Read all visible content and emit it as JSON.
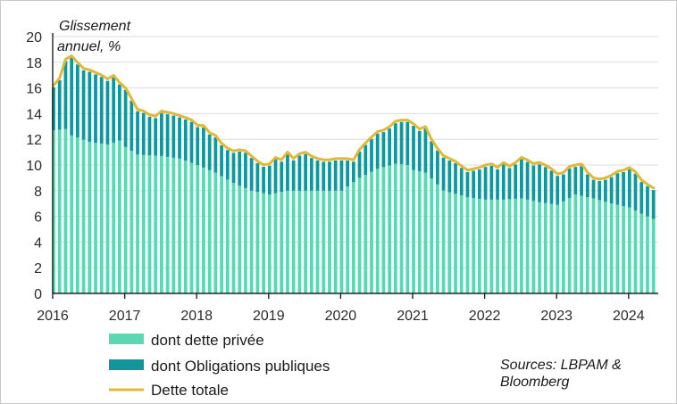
{
  "chart_data": {
    "type": "bar",
    "ylabel_line1": "Glissement",
    "ylabel_line2": "annuel, %",
    "ylim": [
      0,
      20
    ],
    "yticks": [
      "0",
      "2",
      "4",
      "6",
      "8",
      "10",
      "12",
      "14",
      "16",
      "18",
      "20"
    ],
    "xlim": [
      2016,
      2024.33
    ],
    "xticks": [
      "2016",
      "2017",
      "2018",
      "2019",
      "2020",
      "2021",
      "2022",
      "2023",
      "2024"
    ],
    "grid": "horizontal",
    "legend_position": "bottom-left",
    "legend": [
      {
        "key": "private",
        "label": "dont dette privée",
        "color": "#5dd6b4"
      },
      {
        "key": "public",
        "label": "dont Obligations publiques",
        "color": "#12959b"
      },
      {
        "key": "total",
        "label": "Dette totale",
        "color": "#e0b83a"
      }
    ],
    "source_line1": "Sources: LBPAM &",
    "source_line2": "Bloomberg",
    "anchors": {
      "total": [
        [
          2016.0,
          16.2
        ],
        [
          2016.08,
          16.7
        ],
        [
          2016.17,
          18.3
        ],
        [
          2016.25,
          18.5
        ],
        [
          2016.33,
          18.0
        ],
        [
          2016.42,
          17.5
        ],
        [
          2016.5,
          17.4
        ],
        [
          2016.67,
          17.0
        ],
        [
          2016.75,
          16.7
        ],
        [
          2016.83,
          17.0
        ],
        [
          2016.92,
          16.4
        ],
        [
          2017.0,
          16.0
        ],
        [
          2017.08,
          15.2
        ],
        [
          2017.17,
          14.3
        ],
        [
          2017.25,
          14.2
        ],
        [
          2017.33,
          13.9
        ],
        [
          2017.42,
          13.8
        ],
        [
          2017.5,
          14.2
        ],
        [
          2017.67,
          14.0
        ],
        [
          2017.83,
          13.7
        ],
        [
          2017.92,
          13.5
        ],
        [
          2018.0,
          13.1
        ],
        [
          2018.08,
          13.1
        ],
        [
          2018.17,
          12.5
        ],
        [
          2018.25,
          12.3
        ],
        [
          2018.33,
          11.7
        ],
        [
          2018.42,
          11.3
        ],
        [
          2018.5,
          11.1
        ],
        [
          2018.58,
          11.2
        ],
        [
          2018.67,
          11.1
        ],
        [
          2018.75,
          10.7
        ],
        [
          2018.83,
          10.3
        ],
        [
          2018.92,
          10.0
        ],
        [
          2019.0,
          10.1
        ],
        [
          2019.08,
          10.6
        ],
        [
          2019.17,
          10.4
        ],
        [
          2019.25,
          11.0
        ],
        [
          2019.33,
          10.5
        ],
        [
          2019.42,
          10.9
        ],
        [
          2019.5,
          11.0
        ],
        [
          2019.58,
          10.7
        ],
        [
          2019.67,
          10.5
        ],
        [
          2019.75,
          10.4
        ],
        [
          2019.83,
          10.4
        ],
        [
          2019.92,
          10.5
        ],
        [
          2020.0,
          10.5
        ],
        [
          2020.08,
          10.5
        ],
        [
          2020.17,
          10.4
        ],
        [
          2020.25,
          11.2
        ],
        [
          2020.33,
          11.7
        ],
        [
          2020.42,
          12.2
        ],
        [
          2020.5,
          12.6
        ],
        [
          2020.58,
          12.7
        ],
        [
          2020.67,
          13.0
        ],
        [
          2020.75,
          13.4
        ],
        [
          2020.83,
          13.5
        ],
        [
          2020.92,
          13.5
        ],
        [
          2021.0,
          13.2
        ],
        [
          2021.08,
          12.8
        ],
        [
          2021.17,
          13.0
        ],
        [
          2021.25,
          12.0
        ],
        [
          2021.33,
          11.3
        ],
        [
          2021.42,
          10.7
        ],
        [
          2021.5,
          10.5
        ],
        [
          2021.58,
          10.3
        ],
        [
          2021.67,
          9.9
        ],
        [
          2021.75,
          9.6
        ],
        [
          2021.83,
          9.7
        ],
        [
          2021.92,
          9.8
        ],
        [
          2022.0,
          10.0
        ],
        [
          2022.08,
          10.1
        ],
        [
          2022.17,
          9.8
        ],
        [
          2022.25,
          10.2
        ],
        [
          2022.33,
          9.9
        ],
        [
          2022.42,
          10.2
        ],
        [
          2022.5,
          10.6
        ],
        [
          2022.58,
          10.4
        ],
        [
          2022.67,
          10.1
        ],
        [
          2022.75,
          10.2
        ],
        [
          2022.83,
          10.0
        ],
        [
          2022.92,
          9.7
        ],
        [
          2023.0,
          9.3
        ],
        [
          2023.08,
          9.4
        ],
        [
          2023.17,
          9.9
        ],
        [
          2023.25,
          10.0
        ],
        [
          2023.33,
          10.1
        ],
        [
          2023.42,
          9.4
        ],
        [
          2023.5,
          9.0
        ],
        [
          2023.58,
          8.9
        ],
        [
          2023.67,
          9.0
        ],
        [
          2023.75,
          9.2
        ],
        [
          2023.83,
          9.5
        ],
        [
          2023.92,
          9.6
        ],
        [
          2024.0,
          9.8
        ],
        [
          2024.08,
          9.5
        ],
        [
          2024.17,
          8.8
        ],
        [
          2024.25,
          8.5
        ],
        [
          2024.33,
          8.2
        ]
      ],
      "private": [
        [
          2016.0,
          12.7
        ],
        [
          2016.17,
          12.8
        ],
        [
          2016.25,
          12.3
        ],
        [
          2016.5,
          11.8
        ],
        [
          2016.75,
          11.6
        ],
        [
          2016.92,
          11.9
        ],
        [
          2017.0,
          11.4
        ],
        [
          2017.17,
          10.8
        ],
        [
          2017.5,
          10.7
        ],
        [
          2017.75,
          10.5
        ],
        [
          2018.0,
          10.0
        ],
        [
          2018.25,
          9.4
        ],
        [
          2018.5,
          8.6
        ],
        [
          2018.75,
          8.0
        ],
        [
          2019.0,
          7.7
        ],
        [
          2019.25,
          8.0
        ],
        [
          2019.5,
          8.0
        ],
        [
          2019.75,
          8.0
        ],
        [
          2020.0,
          8.0
        ],
        [
          2020.25,
          9.0
        ],
        [
          2020.5,
          9.7
        ],
        [
          2020.75,
          10.1
        ],
        [
          2020.92,
          10.0
        ],
        [
          2021.0,
          9.6
        ],
        [
          2021.17,
          9.4
        ],
        [
          2021.42,
          8.0
        ],
        [
          2021.75,
          7.5
        ],
        [
          2022.0,
          7.3
        ],
        [
          2022.25,
          7.3
        ],
        [
          2022.5,
          7.4
        ],
        [
          2022.75,
          7.1
        ],
        [
          2023.0,
          6.9
        ],
        [
          2023.25,
          7.7
        ],
        [
          2023.5,
          7.4
        ],
        [
          2023.75,
          7.0
        ],
        [
          2024.0,
          6.7
        ],
        [
          2024.17,
          6.2
        ],
        [
          2024.33,
          5.8
        ]
      ]
    }
  }
}
